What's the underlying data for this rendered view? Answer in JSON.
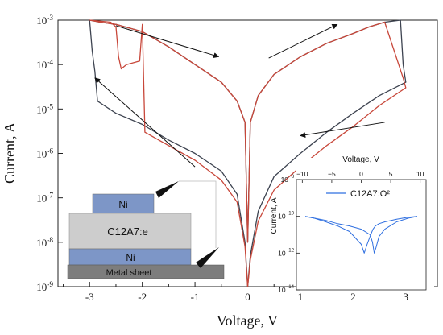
{
  "chart_data": [
    {
      "type": "line",
      "xlabel": "Voltage, V",
      "ylabel": "Current, A",
      "yscale": "log",
      "xlim": [
        -3.6,
        3.6
      ],
      "ylim": [
        1e-09,
        0.001
      ],
      "xticks": [
        -3,
        -2,
        -1,
        0,
        1,
        2,
        3
      ],
      "xtick_labels": [
        "-3",
        "-2",
        "-1",
        "0",
        "1",
        "2",
        "3"
      ],
      "yticks": [
        1e-09,
        1e-08,
        1e-07,
        1e-06,
        1e-05,
        0.0001,
        0.001
      ],
      "ytick_labels": [
        {
          "base": "10",
          "exp": "-9"
        },
        {
          "base": "10",
          "exp": "-8"
        },
        {
          "base": "10",
          "exp": "-7"
        },
        {
          "base": "10",
          "exp": "-6"
        },
        {
          "base": "10",
          "exp": "-5"
        },
        {
          "base": "10",
          "exp": "-4"
        },
        {
          "base": "10",
          "exp": "-3"
        }
      ],
      "series": [
        {
          "color": "#3d4350",
          "x": [
            -3.0,
            -2.9,
            -2.8,
            -2.5,
            -2.0,
            -1.5,
            -1.0,
            -0.5,
            -0.2,
            -0.05,
            0.0,
            0.05,
            0.2,
            0.5,
            1.0,
            1.5,
            2.0,
            2.3,
            2.6,
            2.9,
            2.95,
            3.0,
            2.5,
            2.0,
            1.5,
            1.0,
            0.5,
            0.2,
            0.05,
            0.0,
            -0.05,
            -0.2,
            -0.5,
            -1.0,
            -1.5,
            -2.0,
            -2.5,
            -2.85,
            -2.9,
            -2.95,
            -3.0
          ],
          "y": [
            0.001,
            0.00095,
            0.0009,
            0.0008,
            0.00055,
            0.00025,
            0.0001,
            4e-05,
            1.5e-05,
            5e-06,
            1e-08,
            5e-06,
            2e-05,
            6e-05,
            0.00015,
            0.0003,
            0.0005,
            0.0007,
            0.0009,
            0.001,
            0.0001,
            4e-05,
            2e-05,
            8e-06,
            3e-06,
            1e-06,
            3e-07,
            5e-08,
            5e-09,
            1e-09,
            1e-08,
            1.2e-07,
            4e-07,
            1e-06,
            2e-06,
            4.5e-06,
            8e-06,
            1.5e-05,
            7e-05,
            0.0002,
            0.00098
          ]
        },
        {
          "color": "#c8473a",
          "x": [
            -3.0,
            -2.9,
            -2.8,
            -2.5,
            -2.0,
            -1.5,
            -1.0,
            -0.5,
            -0.2,
            -0.05,
            0.0,
            0.05,
            0.2,
            0.5,
            1.0,
            1.5,
            2.0,
            2.3,
            2.6,
            2.95,
            3.0,
            2.5,
            2.0,
            1.5,
            1.0,
            0.5,
            0.2,
            0.05,
            0.0,
            -0.05,
            -0.2,
            -0.5,
            -1.0,
            -1.5,
            -1.95,
            -2.0,
            -2.05,
            -2.3,
            -2.4,
            -2.45,
            -2.5,
            -2.6,
            -3.0
          ],
          "y": [
            0.001,
            0.00095,
            0.0009,
            0.0008,
            0.00055,
            0.00025,
            0.0001,
            4e-05,
            1.5e-05,
            5e-06,
            1e-08,
            5e-06,
            2e-05,
            6e-05,
            0.00015,
            0.0003,
            0.0005,
            0.0007,
            0.0009,
            5e-05,
            3e-05,
            1.2e-05,
            4e-06,
            1.5e-06,
            5e-07,
            1.5e-07,
            3e-08,
            4e-09,
            1e-09,
            8e-09,
            8e-08,
            2.5e-07,
            7e-07,
            1.5e-06,
            3e-06,
            0.0008,
            0.00012,
            0.0001,
            8e-05,
            0.00015,
            0.0007,
            0.0009,
            0.001
          ]
        }
      ],
      "annotations": {
        "arrows": [
          {
            "from": [
              -2.5,
              0.00075
            ],
            "to": [
              -0.55,
              0.00015
            ]
          },
          {
            "from": [
              0.4,
              0.00014
            ],
            "to": [
              1.7,
              0.0008
            ]
          },
          {
            "from": [
              2.6,
              5e-06
            ],
            "to": [
              1.0,
              2.5e-06
            ]
          },
          {
            "from": [
              -1.0,
              5e-07
            ],
            "to": [
              -2.9,
              5e-05
            ]
          }
        ]
      },
      "device_schematic": {
        "layers": [
          "Ni",
          "C12A7:e⁻",
          "Ni",
          "Metal sheet"
        ],
        "colors": {
          "nickel": "#7d96c7",
          "electride": "#cdcdcd",
          "metal": "#7d7d7d"
        }
      }
    },
    {
      "type": "line",
      "xlabel": "Voltage, V",
      "ylabel": "Current, A",
      "yscale": "log",
      "xlim": [
        -11,
        11
      ],
      "ylim": [
        1e-14,
        1e-08
      ],
      "xticks": [
        -10,
        -5,
        0,
        5,
        10
      ],
      "xtick_labels": [
        "−10",
        "−5",
        "0",
        "5",
        "10"
      ],
      "yticks": [
        1e-14,
        1e-12,
        1e-10,
        1e-08
      ],
      "ytick_labels": [
        {
          "base": "10",
          "exp": "−14"
        },
        {
          "base": "10",
          "exp": "−12"
        },
        {
          "base": "10",
          "exp": "−10"
        },
        {
          "base": "10",
          "exp": "−8"
        }
      ],
      "legend": "top-left",
      "series": [
        {
          "name": "C12A7:O²⁻",
          "color": "#2f6fe0",
          "x": [
            -9.5,
            -8,
            -6,
            -4,
            -2,
            0,
            0.5,
            1,
            1.6,
            2.0,
            2.4,
            3,
            4,
            6,
            8,
            9.5
          ],
          "y": [
            1e-10,
            8e-11,
            5e-11,
            3e-11,
            1.5e-11,
            3e-12,
            1e-12,
            3e-12,
            1e-11,
            2e-11,
            3e-11,
            4e-11,
            5e-11,
            7e-11,
            9e-11,
            1e-10
          ]
        },
        {
          "name": "",
          "color": "#2f6fe0",
          "x": [
            9.5,
            8,
            6,
            4,
            3,
            2.5,
            2.2,
            1.9,
            1.5,
            0,
            -2,
            -4,
            -6,
            -8,
            -9.5
          ],
          "y": [
            1e-10,
            8e-11,
            5e-11,
            2e-11,
            8e-12,
            2e-12,
            1e-12,
            4e-12,
            1e-11,
            2e-11,
            3e-11,
            4e-11,
            6e-11,
            8e-11,
            1e-10
          ]
        }
      ]
    }
  ]
}
